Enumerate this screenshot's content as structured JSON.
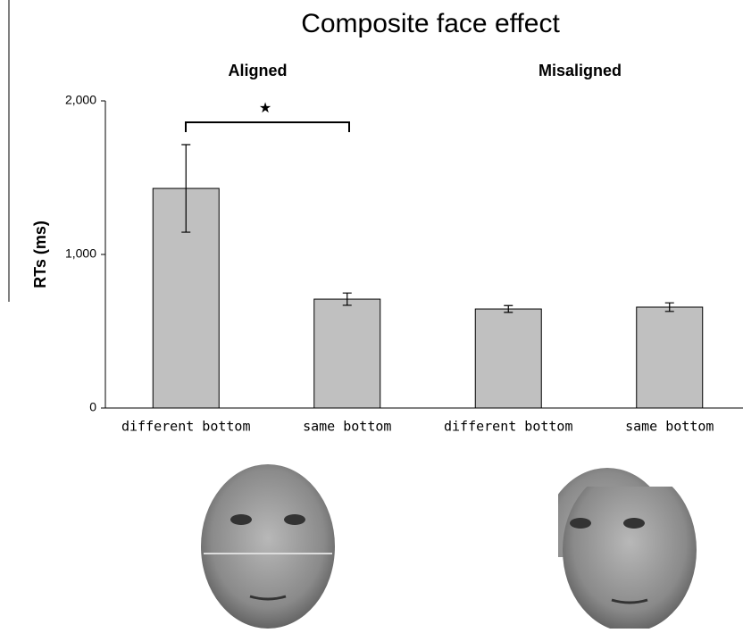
{
  "chart_data": {
    "type": "bar",
    "title": "Composite face effect",
    "ylabel": "RTs (ms)",
    "groups": [
      "Aligned",
      "Misaligned"
    ],
    "categories": [
      "different bottom",
      "same bottom",
      "different bottom",
      "same bottom"
    ],
    "values": [
      1430,
      709,
      645,
      657
    ],
    "errors": [
      285,
      40,
      22,
      28
    ],
    "color": "#c0c0c0",
    "ylim": [
      0,
      2000
    ],
    "yticks": [
      0,
      {
        "value": 1000,
        "label": "1,000"
      },
      {
        "value": 2000,
        "label": "2,000"
      }
    ],
    "annotation": "★"
  }
}
